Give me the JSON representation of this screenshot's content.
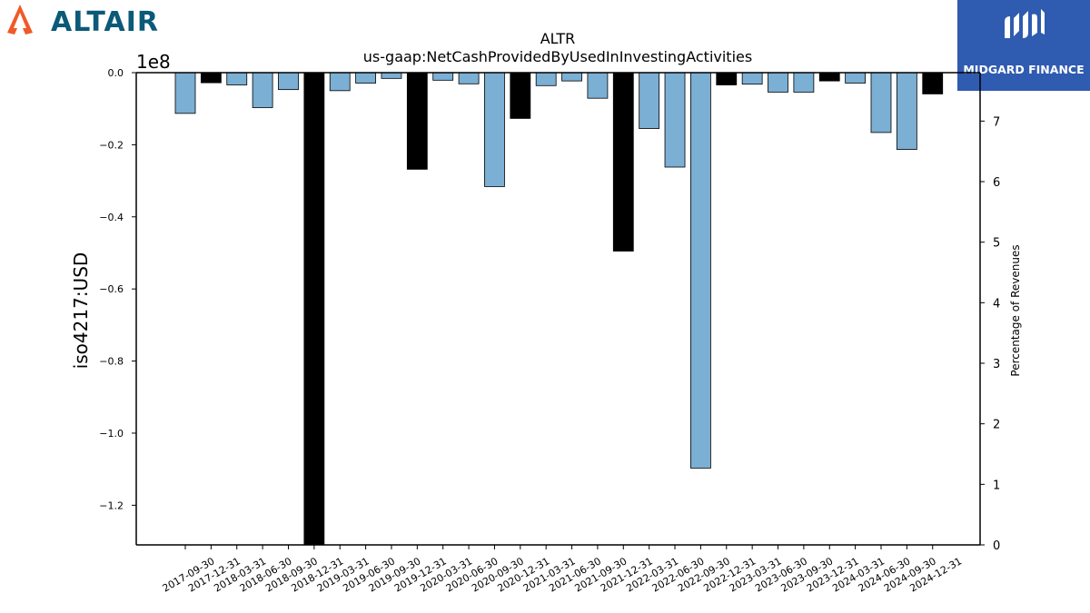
{
  "branding": {
    "left_logo_text": "ALTAIR",
    "right_logo_text": "MIDGARD FINANCE",
    "left_logo_color": "#0a5a78",
    "left_logo_mark_color": "#f05a28",
    "right_logo_bg": "#2f5bb0"
  },
  "chart_data": {
    "type": "bar",
    "title": "ALTR",
    "subtitle": "us-gaap:NetCashProvidedByUsedInInvestingActivities",
    "ylabel": "iso4217:USD",
    "y2label": "Percentage of Revenues",
    "y_offset_label": "1e8",
    "ylim": [
      -1.31,
      0.0
    ],
    "y2lim": [
      0,
      7.8
    ],
    "yticks": [
      0.0,
      -0.2,
      -0.4,
      -0.6,
      -0.8,
      -1.0,
      -1.2
    ],
    "ytick_labels": [
      "0.0",
      "−0.2",
      "−0.4",
      "−0.6",
      "−0.8",
      "−1.0",
      "−1.2"
    ],
    "y2ticks": [
      0,
      1,
      2,
      3,
      4,
      5,
      6,
      7
    ],
    "y2tick_labels": [
      "0",
      "1",
      "2",
      "3",
      "4",
      "5",
      "6",
      "7"
    ],
    "colors": {
      "quarterly": "#7bafd4",
      "annual": "#000000"
    },
    "categories": [
      "2017-09-30",
      "2017-12-31",
      "2018-03-31",
      "2018-06-30",
      "2018-09-30",
      "2018-12-31",
      "2019-03-31",
      "2019-06-30",
      "2019-09-30",
      "2019-12-31",
      "2020-03-31",
      "2020-06-30",
      "2020-09-30",
      "2020-12-31",
      "2021-03-31",
      "2021-06-30",
      "2021-09-30",
      "2021-12-31",
      "2022-03-31",
      "2022-06-30",
      "2022-09-30",
      "2022-12-31",
      "2023-03-31",
      "2023-06-30",
      "2023-09-30",
      "2023-12-31",
      "2024-03-31",
      "2024-06-30",
      "2024-09-30",
      "2024-12-31"
    ],
    "values": [
      -0.113,
      -0.028,
      -0.034,
      -0.097,
      -0.047,
      -1.31,
      -0.05,
      -0.029,
      -0.016,
      -0.268,
      -0.021,
      -0.031,
      -0.316,
      -0.127,
      -0.036,
      -0.023,
      -0.071,
      -0.495,
      -0.155,
      -0.262,
      -1.097,
      -0.034,
      -0.032,
      -0.054,
      -0.054,
      -0.023,
      -0.029,
      -0.166,
      -0.213,
      -0.059
    ],
    "bar_kind": [
      "quarterly",
      "annual",
      "quarterly",
      "quarterly",
      "quarterly",
      "annual",
      "quarterly",
      "quarterly",
      "quarterly",
      "annual",
      "quarterly",
      "quarterly",
      "quarterly",
      "annual",
      "quarterly",
      "quarterly",
      "quarterly",
      "annual",
      "quarterly",
      "quarterly",
      "quarterly",
      "annual",
      "quarterly",
      "quarterly",
      "quarterly",
      "annual",
      "quarterly",
      "quarterly",
      "quarterly",
      "annual"
    ]
  }
}
